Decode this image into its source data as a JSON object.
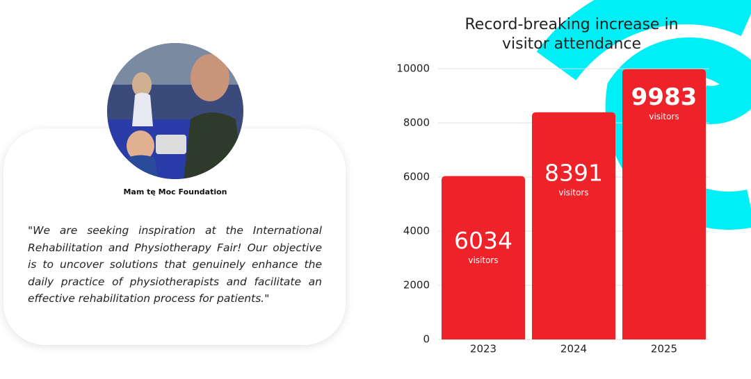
{
  "testimonial": {
    "name": "Mam tę Moc Foundation",
    "quote": "\"We are seeking inspiration at the International Rehabilitation and Physiotherapy Fair! Our objective is to uncover solutions that genuinely enhance the daily practice of physiotherapists and facilitate an effective rehabilitation process for patients.\""
  },
  "chart_data": {
    "type": "bar",
    "title": "Record-breaking increase in visitor attendance",
    "categories": [
      "2023",
      "2024",
      "2025"
    ],
    "values": [
      6034,
      8391,
      9983
    ],
    "value_unit": "visitors",
    "color": "#ee2229",
    "ylim": [
      0,
      10000
    ],
    "yticks": [
      0,
      2000,
      4000,
      6000,
      8000,
      10000
    ],
    "grid": true
  }
}
